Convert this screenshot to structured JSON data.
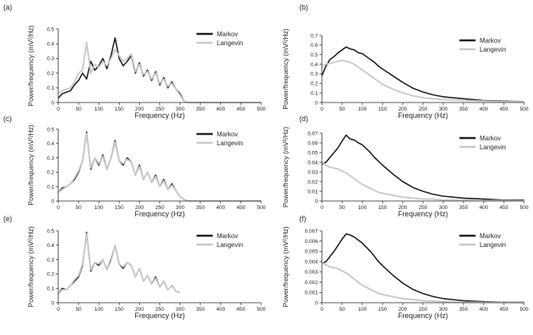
{
  "colors": {
    "markov": "#1e1e1e",
    "langevin": "#c9c9c4",
    "axis": "#231f20"
  },
  "chart_data": [
    {
      "panel": "(a)",
      "type": "line",
      "xlabel": "Frequency (Hz)",
      "ylabel": "Power/frequency (mV²/Hz)",
      "xlim": [
        0,
        500
      ],
      "ylim": [
        0,
        0.5
      ],
      "xticks": [
        0,
        50,
        100,
        150,
        200,
        250,
        300,
        350,
        400,
        450,
        500
      ],
      "yticks": [
        0,
        0.1,
        0.2,
        0.3,
        0.4,
        0.5
      ],
      "ytick_labels": [
        "0",
        "0.1",
        "0.2",
        "0.3",
        "0.4",
        "0.5"
      ],
      "legend": "top-right",
      "series": [
        {
          "name": "Markov",
          "x": [
            0,
            10,
            20,
            30,
            40,
            50,
            60,
            70,
            80,
            90,
            100,
            110,
            120,
            130,
            140,
            150,
            160,
            170,
            180,
            190,
            200,
            210,
            220,
            230,
            240,
            250,
            260,
            270,
            280,
            290,
            300,
            310,
            320,
            350,
            400,
            450,
            500
          ],
          "y": [
            0.03,
            0.06,
            0.07,
            0.08,
            0.12,
            0.15,
            0.2,
            0.16,
            0.28,
            0.22,
            0.25,
            0.3,
            0.23,
            0.32,
            0.44,
            0.3,
            0.25,
            0.28,
            0.32,
            0.2,
            0.27,
            0.18,
            0.22,
            0.15,
            0.21,
            0.12,
            0.17,
            0.1,
            0.14,
            0.09,
            0.06,
            0.01,
            0,
            0,
            0,
            0,
            0
          ]
        },
        {
          "name": "Langevin",
          "x": [
            0,
            10,
            20,
            30,
            40,
            50,
            60,
            70,
            80,
            90,
            100,
            110,
            120,
            130,
            140,
            150,
            160,
            170,
            180,
            190,
            200,
            210,
            220,
            230,
            240,
            250,
            260,
            270,
            280,
            290,
            300,
            310,
            320,
            350,
            400,
            450,
            500
          ],
          "y": [
            0.06,
            0.08,
            0.09,
            0.1,
            0.14,
            0.2,
            0.22,
            0.41,
            0.2,
            0.26,
            0.24,
            0.28,
            0.25,
            0.3,
            0.36,
            0.32,
            0.28,
            0.3,
            0.33,
            0.21,
            0.26,
            0.19,
            0.21,
            0.16,
            0.2,
            0.13,
            0.16,
            0.11,
            0.13,
            0.09,
            0.05,
            0.01,
            0,
            0,
            0,
            0,
            0
          ]
        }
      ]
    },
    {
      "panel": "(b)",
      "type": "line",
      "xlabel": "Frequency (Hz)",
      "ylabel": "Power/frequency (mV²/Hz)",
      "xlim": [
        0,
        500
      ],
      "ylim": [
        0,
        0.7
      ],
      "xticks": [
        0,
        50,
        100,
        150,
        200,
        250,
        300,
        350,
        400,
        450,
        500
      ],
      "yticks": [
        0,
        0.1,
        0.2,
        0.3,
        0.4,
        0.5,
        0.6,
        0.7
      ],
      "ytick_labels": [
        "0",
        "0.1",
        "0.2",
        "0.3",
        "0.4",
        "0.5",
        "0.6",
        "0.7"
      ],
      "legend": "top-right",
      "series": [
        {
          "name": "Markov",
          "x": [
            0,
            10,
            20,
            30,
            40,
            50,
            60,
            70,
            80,
            90,
            100,
            110,
            120,
            130,
            140,
            150,
            175,
            200,
            225,
            250,
            275,
            300,
            350,
            400,
            450,
            500
          ],
          "y": [
            0.28,
            0.38,
            0.45,
            0.48,
            0.52,
            0.55,
            0.58,
            0.56,
            0.55,
            0.52,
            0.51,
            0.48,
            0.45,
            0.42,
            0.38,
            0.35,
            0.28,
            0.21,
            0.15,
            0.11,
            0.08,
            0.06,
            0.04,
            0.02,
            0.015,
            0.01
          ]
        },
        {
          "name": "Langevin",
          "x": [
            0,
            10,
            20,
            30,
            40,
            50,
            60,
            70,
            80,
            90,
            100,
            110,
            120,
            130,
            140,
            150,
            175,
            200,
            225,
            250,
            275,
            300,
            350,
            400,
            450,
            500
          ],
          "y": [
            0.38,
            0.4,
            0.41,
            0.42,
            0.43,
            0.44,
            0.43,
            0.42,
            0.4,
            0.37,
            0.34,
            0.31,
            0.28,
            0.25,
            0.22,
            0.19,
            0.14,
            0.1,
            0.07,
            0.05,
            0.04,
            0.03,
            0.02,
            0.015,
            0.01,
            0.008
          ]
        }
      ]
    },
    {
      "panel": "(c)",
      "type": "line",
      "xlabel": "Frequency (Hz)",
      "ylabel": "Power/frequency (mV²/Hz)",
      "xlim": [
        0,
        500
      ],
      "ylim": [
        0,
        0.5
      ],
      "xticks": [
        0,
        50,
        100,
        150,
        200,
        250,
        300,
        350,
        400,
        450,
        500
      ],
      "yticks": [
        0,
        0.1,
        0.2,
        0.3,
        0.4,
        0.5
      ],
      "ytick_labels": [
        "0",
        "0.1",
        "0.2",
        "0.3",
        "0.4",
        "0.5"
      ],
      "legend": "top-right",
      "series": [
        {
          "name": "Markov",
          "x": [
            0,
            10,
            20,
            30,
            40,
            50,
            60,
            70,
            80,
            90,
            100,
            110,
            120,
            130,
            140,
            150,
            160,
            170,
            180,
            190,
            200,
            210,
            220,
            230,
            240,
            250,
            260,
            270,
            280,
            290,
            300,
            310,
            320,
            350,
            400,
            450,
            500
          ],
          "y": [
            0.06,
            0.09,
            0.1,
            0.12,
            0.15,
            0.2,
            0.28,
            0.48,
            0.22,
            0.3,
            0.25,
            0.32,
            0.22,
            0.3,
            0.42,
            0.28,
            0.25,
            0.3,
            0.27,
            0.18,
            0.25,
            0.15,
            0.2,
            0.13,
            0.18,
            0.1,
            0.15,
            0.08,
            0.12,
            0.07,
            0.03,
            0.01,
            0,
            0,
            0,
            0,
            0
          ]
        },
        {
          "name": "Langevin",
          "x": [
            0,
            10,
            20,
            30,
            40,
            50,
            60,
            70,
            80,
            90,
            100,
            110,
            120,
            130,
            140,
            150,
            160,
            170,
            180,
            190,
            200,
            210,
            220,
            230,
            240,
            250,
            260,
            270,
            280,
            290,
            300,
            310,
            320,
            350,
            400,
            450,
            500
          ],
          "y": [
            0.06,
            0.08,
            0.1,
            0.12,
            0.16,
            0.21,
            0.28,
            0.47,
            0.23,
            0.3,
            0.26,
            0.31,
            0.22,
            0.3,
            0.41,
            0.28,
            0.26,
            0.29,
            0.27,
            0.18,
            0.24,
            0.15,
            0.2,
            0.13,
            0.17,
            0.1,
            0.14,
            0.08,
            0.11,
            0.07,
            0.03,
            0.01,
            0,
            0,
            0,
            0,
            0
          ]
        }
      ]
    },
    {
      "panel": "(d)",
      "type": "line",
      "xlabel": "Frequency (Hz)",
      "ylabel": "Power/frequency (mV²/Hz)",
      "xlim": [
        0,
        500
      ],
      "ylim": [
        0,
        0.07
      ],
      "xticks": [
        0,
        50,
        100,
        150,
        200,
        250,
        300,
        350,
        400,
        450,
        500
      ],
      "yticks": [
        0,
        0.01,
        0.02,
        0.03,
        0.04,
        0.05,
        0.06,
        0.07
      ],
      "ytick_labels": [
        "0",
        "0.01",
        "0.02",
        "0.03",
        "0.04",
        "0.05",
        "0.06",
        "0.07"
      ],
      "legend": "top-right",
      "series": [
        {
          "name": "Markov",
          "x": [
            0,
            10,
            20,
            30,
            40,
            50,
            60,
            70,
            80,
            90,
            100,
            110,
            120,
            130,
            140,
            150,
            175,
            200,
            225,
            250,
            275,
            300,
            350,
            400,
            450,
            500
          ],
          "y": [
            0.038,
            0.04,
            0.045,
            0.05,
            0.055,
            0.062,
            0.068,
            0.064,
            0.063,
            0.06,
            0.058,
            0.054,
            0.05,
            0.045,
            0.041,
            0.037,
            0.028,
            0.02,
            0.014,
            0.01,
            0.007,
            0.005,
            0.003,
            0.002,
            0.001,
            0.001
          ]
        },
        {
          "name": "Langevin",
          "x": [
            0,
            10,
            20,
            30,
            40,
            50,
            60,
            70,
            80,
            90,
            100,
            110,
            120,
            130,
            140,
            150,
            175,
            200,
            225,
            250,
            275,
            300,
            350,
            400,
            450,
            500
          ],
          "y": [
            0.04,
            0.037,
            0.035,
            0.034,
            0.033,
            0.031,
            0.029,
            0.026,
            0.023,
            0.02,
            0.017,
            0.015,
            0.013,
            0.011,
            0.009,
            0.008,
            0.006,
            0.004,
            0.003,
            0.002,
            0.002,
            0.001,
            0.001,
            0.0005,
            0.0004,
            0.0003
          ]
        }
      ]
    },
    {
      "panel": "(e)",
      "type": "line",
      "xlabel": "Frequency (Hz)",
      "ylabel": "Power/frequency (mV²/Hz)",
      "xlim": [
        0,
        500
      ],
      "ylim": [
        0,
        0.5
      ],
      "xticks": [
        0,
        50,
        100,
        150,
        200,
        250,
        300,
        350,
        400,
        450,
        500
      ],
      "yticks": [
        0,
        0.1,
        0.2,
        0.3,
        0.4,
        0.5
      ],
      "ytick_labels": [
        "0",
        "0.1",
        "0.2",
        "0.3",
        "0.4",
        "0.5"
      ],
      "legend": "top-right",
      "series": [
        {
          "name": "Markov",
          "x": [
            0,
            10,
            20,
            30,
            40,
            50,
            60,
            70,
            80,
            90,
            100,
            110,
            120,
            130,
            140,
            150,
            160,
            170,
            180,
            190,
            200,
            210,
            220,
            230,
            240,
            250,
            260,
            270,
            280,
            290,
            300
          ],
          "y": [
            0.06,
            0.1,
            0.09,
            0.12,
            0.15,
            0.18,
            0.26,
            0.49,
            0.22,
            0.28,
            0.26,
            0.3,
            0.23,
            0.3,
            0.4,
            0.27,
            0.24,
            0.28,
            0.26,
            0.18,
            0.24,
            0.15,
            0.19,
            0.13,
            0.18,
            0.11,
            0.15,
            0.09,
            0.12,
            0.08,
            0.07
          ]
        },
        {
          "name": "Langevin",
          "x": [
            0,
            10,
            20,
            30,
            40,
            50,
            60,
            70,
            80,
            90,
            100,
            110,
            120,
            130,
            140,
            150,
            160,
            170,
            180,
            190,
            200,
            210,
            220,
            230,
            240,
            250,
            260,
            270,
            280,
            290,
            300
          ],
          "y": [
            0.06,
            0.09,
            0.09,
            0.12,
            0.16,
            0.19,
            0.27,
            0.48,
            0.23,
            0.28,
            0.27,
            0.3,
            0.23,
            0.29,
            0.4,
            0.27,
            0.25,
            0.28,
            0.26,
            0.18,
            0.24,
            0.15,
            0.19,
            0.13,
            0.17,
            0.11,
            0.15,
            0.09,
            0.12,
            0.08,
            0.07
          ]
        }
      ]
    },
    {
      "panel": "(f)",
      "type": "line",
      "xlabel": "Frequency (Hz)",
      "ylabel": "Power/frequency (mV²/Hz)",
      "xlim": [
        0,
        500
      ],
      "ylim": [
        0,
        0.007
      ],
      "xticks": [
        0,
        50,
        100,
        150,
        200,
        250,
        300,
        350,
        400,
        450,
        500
      ],
      "yticks": [
        0,
        0.001,
        0.002,
        0.003,
        0.004,
        0.005,
        0.006,
        0.007
      ],
      "ytick_labels": [
        "0",
        "0.001",
        "0.002",
        "0.003",
        "0.004",
        "0.005",
        "0.006",
        "0.007"
      ],
      "legend": "top-right",
      "series": [
        {
          "name": "Markov",
          "x": [
            0,
            10,
            20,
            30,
            40,
            50,
            60,
            70,
            80,
            90,
            100,
            110,
            120,
            130,
            140,
            150,
            175,
            200,
            225,
            250,
            275,
            300,
            350,
            400,
            450,
            500
          ],
          "y": [
            0.0038,
            0.004,
            0.0045,
            0.005,
            0.0056,
            0.0062,
            0.0067,
            0.0066,
            0.0064,
            0.0061,
            0.0058,
            0.0054,
            0.005,
            0.0045,
            0.004,
            0.0036,
            0.0027,
            0.0019,
            0.0013,
            0.0009,
            0.0006,
            0.0004,
            0.0002,
            0.0001,
            5e-05,
            3e-05
          ]
        },
        {
          "name": "Langevin",
          "x": [
            0,
            10,
            20,
            30,
            40,
            50,
            60,
            70,
            80,
            90,
            100,
            110,
            120,
            130,
            140,
            150,
            175,
            200,
            225,
            250,
            275,
            300,
            350,
            400,
            450,
            500
          ],
          "y": [
            0.0039,
            0.0037,
            0.0035,
            0.0034,
            0.0033,
            0.0031,
            0.0029,
            0.0026,
            0.0023,
            0.002,
            0.0017,
            0.0015,
            0.0013,
            0.0011,
            0.0009,
            0.0008,
            0.0006,
            0.0004,
            0.0003,
            0.0002,
            0.00015,
            0.0001,
            5e-05,
            3e-05,
            2e-05,
            1e-05
          ]
        }
      ]
    }
  ]
}
